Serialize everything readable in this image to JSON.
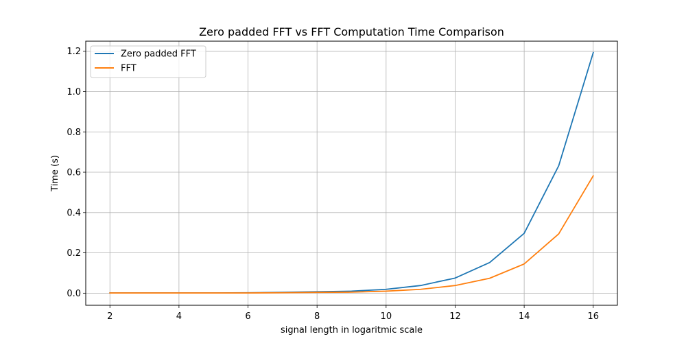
{
  "chart_data": {
    "type": "line",
    "title": "Zero padded FFT vs FFT Computation Time Comparison",
    "xlabel": "signal length in logaritmic scale",
    "ylabel": "Time (s)",
    "x": [
      2,
      3,
      4,
      5,
      6,
      7,
      8,
      9,
      10,
      11,
      12,
      13,
      14,
      15,
      16
    ],
    "xlim": [
      1.3,
      16.7
    ],
    "ylim": [
      -0.06,
      1.25
    ],
    "xticks": [
      2,
      4,
      6,
      8,
      10,
      12,
      14,
      16
    ],
    "xtick_labels": [
      "2",
      "4",
      "6",
      "8",
      "10",
      "12",
      "14",
      "16"
    ],
    "yticks": [
      0.0,
      0.2,
      0.4,
      0.6,
      0.8,
      1.0,
      1.2
    ],
    "ytick_labels": [
      "0.0",
      "0.2",
      "0.4",
      "0.6",
      "0.8",
      "1.0",
      "1.2"
    ],
    "grid": true,
    "legend_position": "top-left",
    "series": [
      {
        "name": "Zero padded FFT",
        "color": "#1f77b4",
        "values": [
          0.001,
          0.001,
          0.001,
          0.001,
          0.002,
          0.004,
          0.007,
          0.01,
          0.019,
          0.038,
          0.075,
          0.152,
          0.297,
          0.632,
          1.193
        ]
      },
      {
        "name": "FFT",
        "color": "#ff7f0e",
        "values": [
          0.001,
          0.001,
          0.001,
          0.001,
          0.001,
          0.002,
          0.004,
          0.005,
          0.01,
          0.019,
          0.038,
          0.074,
          0.145,
          0.294,
          0.582
        ]
      }
    ]
  }
}
